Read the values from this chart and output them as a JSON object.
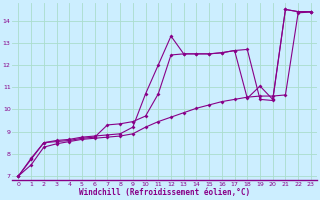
{
  "xlabel": "Windchill (Refroidissement éolien,°C)",
  "bg_color": "#cceeff",
  "grid_color": "#aaddcc",
  "line_color": "#880088",
  "xlim": [
    -0.5,
    23.5
  ],
  "ylim": [
    6.8,
    14.8
  ],
  "xticks": [
    0,
    1,
    2,
    3,
    4,
    5,
    6,
    7,
    8,
    9,
    10,
    11,
    12,
    13,
    14,
    15,
    16,
    17,
    18,
    19,
    20,
    21,
    22,
    23
  ],
  "yticks": [
    7,
    8,
    9,
    10,
    11,
    12,
    13,
    14
  ],
  "series1_x": [
    0,
    1,
    2,
    3,
    4,
    5,
    6,
    7,
    8,
    9,
    10,
    11,
    12,
    13,
    14,
    15,
    16,
    17,
    18,
    19,
    20,
    21,
    22,
    23
  ],
  "series1_y": [
    7.0,
    7.8,
    8.5,
    8.6,
    8.65,
    8.75,
    8.8,
    8.85,
    8.9,
    9.2,
    10.7,
    12.0,
    13.3,
    12.5,
    12.5,
    12.5,
    12.55,
    12.65,
    10.5,
    11.05,
    10.45,
    14.5,
    14.4,
    14.4
  ],
  "series2_x": [
    0,
    1,
    2,
    3,
    4,
    5,
    6,
    7,
    8,
    9,
    10,
    11,
    12,
    13,
    14,
    15,
    16,
    17,
    18,
    19,
    20,
    21,
    22,
    23
  ],
  "series2_y": [
    7.0,
    7.75,
    8.5,
    8.55,
    8.6,
    8.7,
    8.75,
    9.3,
    9.35,
    9.45,
    9.7,
    10.7,
    12.45,
    12.5,
    12.5,
    12.5,
    12.55,
    12.65,
    12.7,
    10.45,
    10.4,
    14.5,
    14.4,
    14.4
  ],
  "series3_x": [
    0,
    1,
    2,
    3,
    4,
    5,
    6,
    7,
    8,
    9,
    10,
    11,
    12,
    13,
    14,
    15,
    16,
    17,
    18,
    19,
    20,
    21,
    22,
    23
  ],
  "series3_y": [
    7.0,
    7.5,
    8.3,
    8.45,
    8.55,
    8.65,
    8.7,
    8.75,
    8.8,
    8.9,
    9.2,
    9.45,
    9.65,
    9.85,
    10.05,
    10.2,
    10.35,
    10.45,
    10.55,
    10.6,
    10.6,
    10.65,
    14.35,
    14.38
  ]
}
